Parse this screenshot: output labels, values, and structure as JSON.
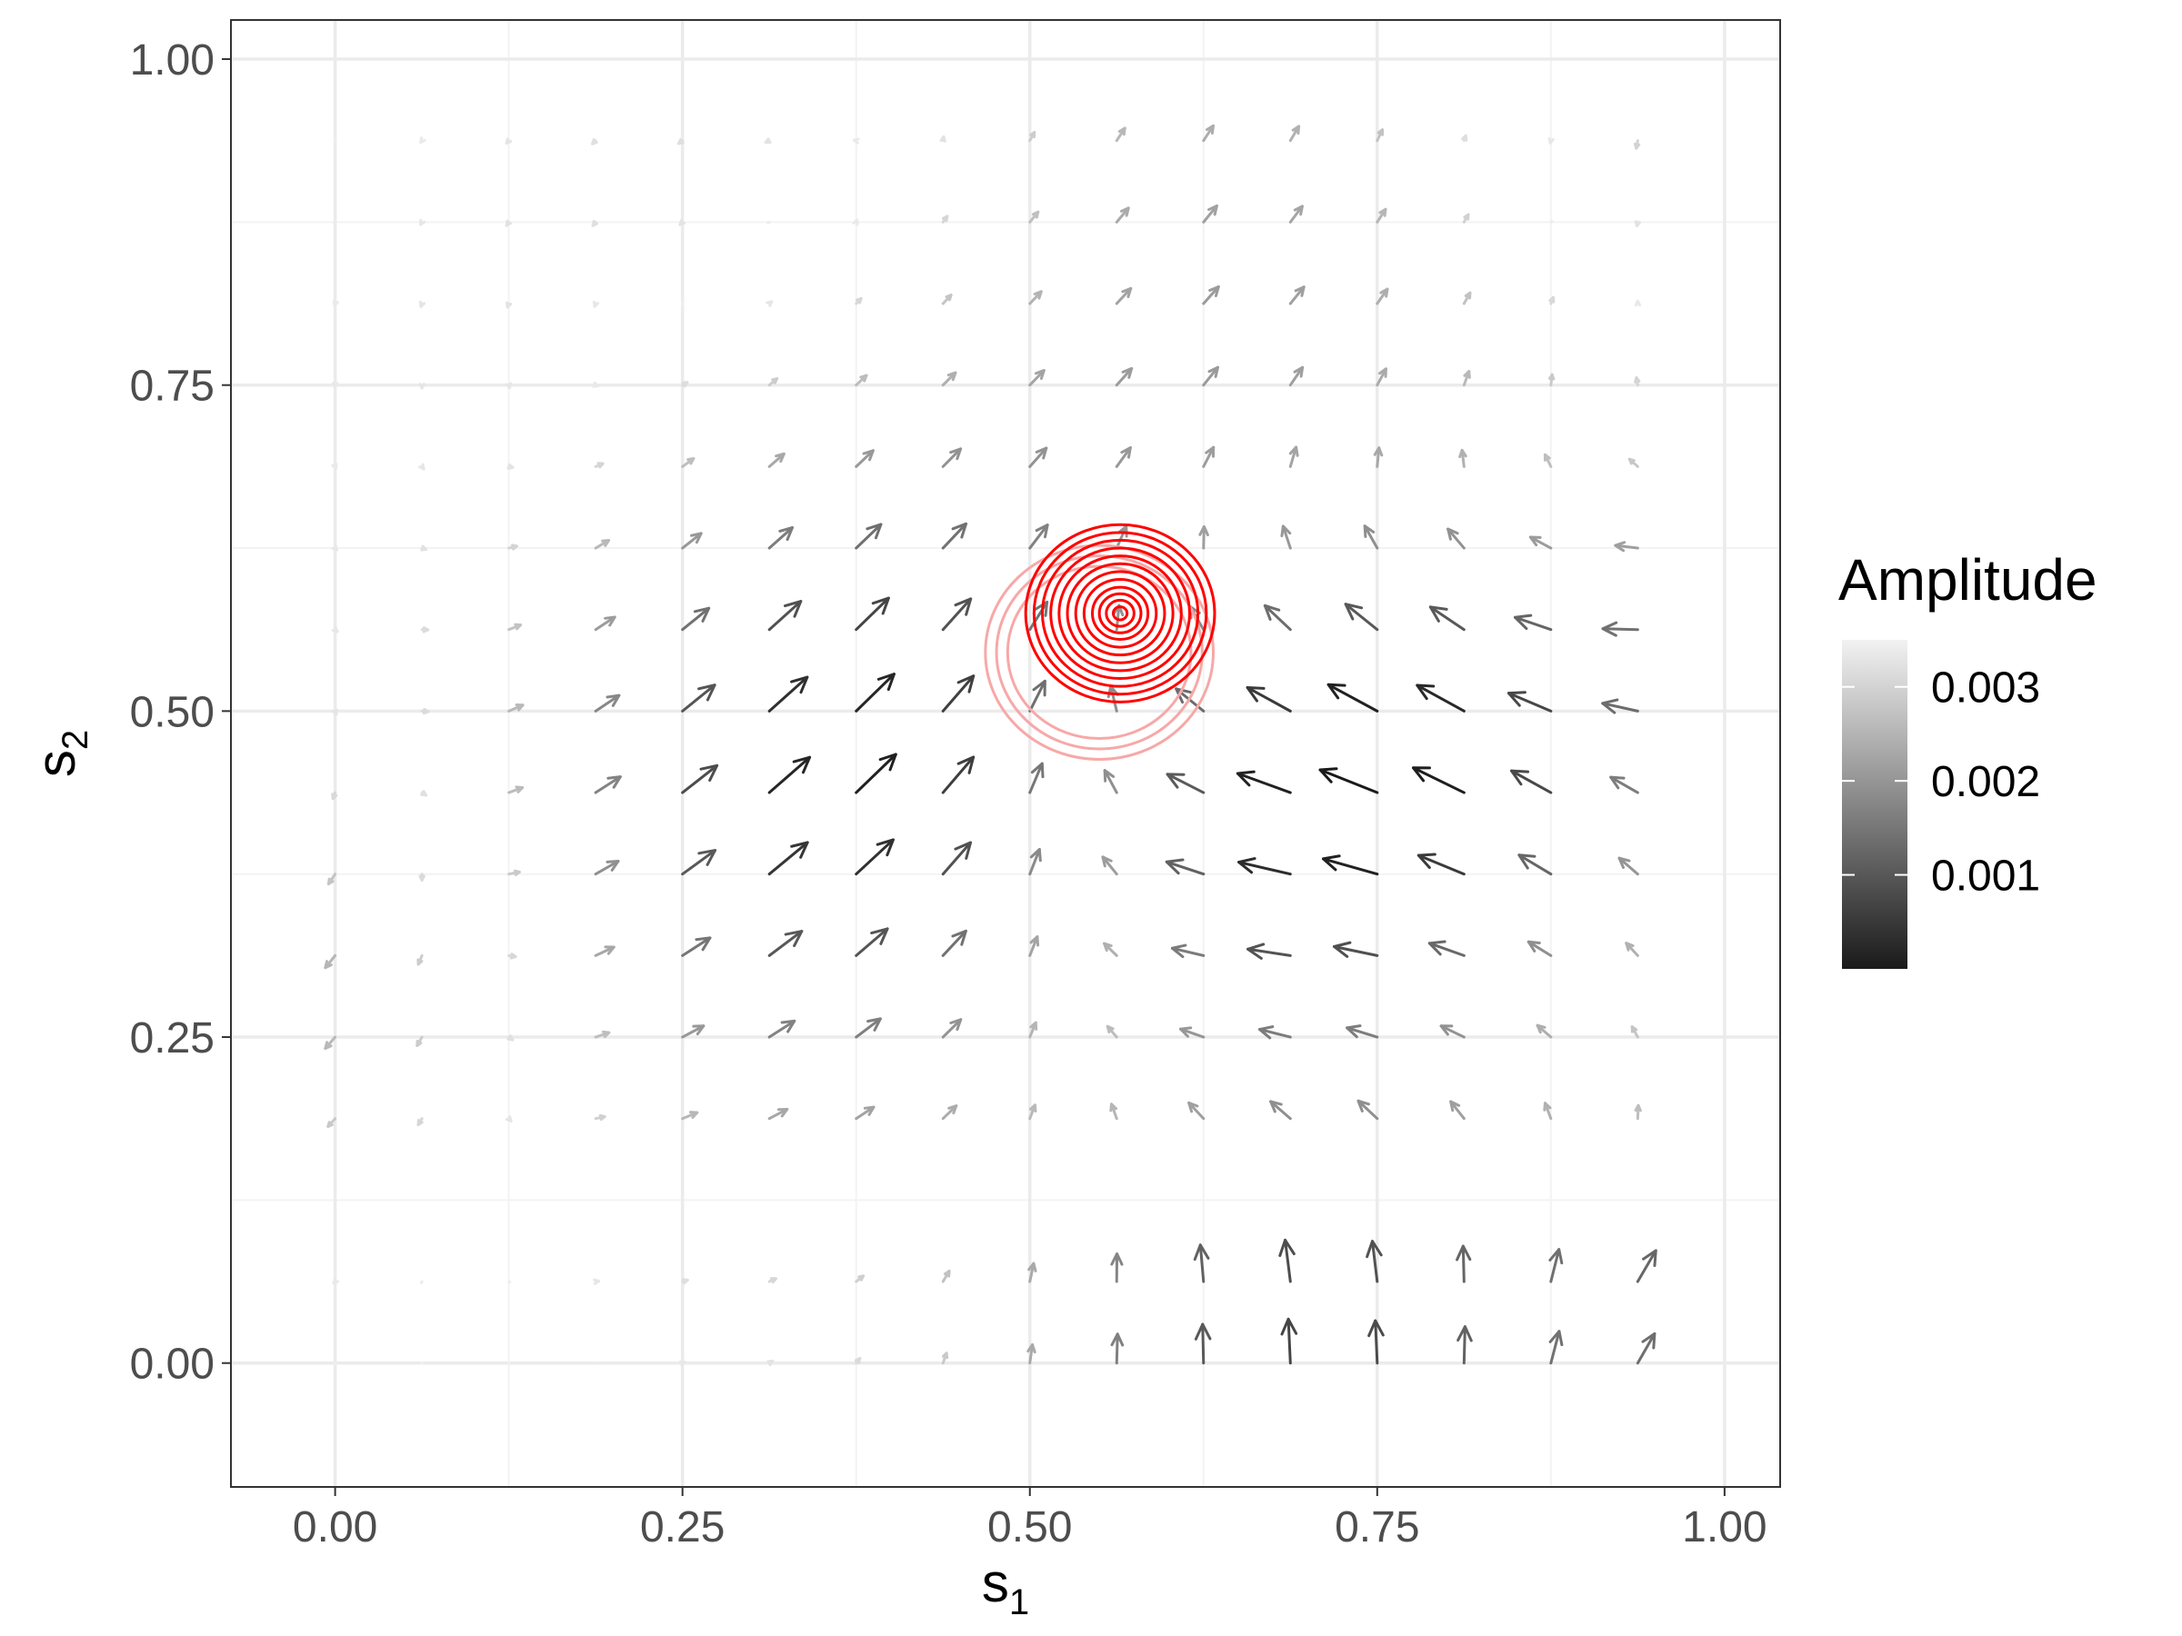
{
  "chart_data": {
    "type": "quiver",
    "xlabel": "s",
    "xlabel_sub": "1",
    "ylabel": "s",
    "ylabel_sub": "2",
    "xlim": [
      -0.075,
      1.04
    ],
    "ylim": [
      -0.095,
      1.03
    ],
    "x_ticks": [
      {
        "value": 0.0,
        "label": "0.00"
      },
      {
        "value": 0.25,
        "label": "0.25"
      },
      {
        "value": 0.5,
        "label": "0.50"
      },
      {
        "value": 0.75,
        "label": "0.75"
      },
      {
        "value": 1.0,
        "label": "1.00"
      }
    ],
    "y_ticks": [
      {
        "value": 0.0,
        "label": "0.00"
      },
      {
        "value": 0.25,
        "label": "0.25"
      },
      {
        "value": 0.5,
        "label": "0.50"
      },
      {
        "value": 0.75,
        "label": "0.75"
      },
      {
        "value": 1.0,
        "label": "1.00"
      }
    ],
    "grid": true,
    "legend": {
      "title": "Amplitude",
      "placement": "right",
      "range": [
        0.0,
        0.0035
      ],
      "breaks": [
        {
          "value": 0.001,
          "label": "0.001"
        },
        {
          "value": 0.002,
          "label": "0.002"
        },
        {
          "value": 0.003,
          "label": "0.003"
        }
      ]
    },
    "vector_field": {
      "grid_x": [
        0.0,
        0.0625,
        0.125,
        0.1875,
        0.25,
        0.3125,
        0.375,
        0.4375,
        0.5,
        0.5625,
        0.625,
        0.6875,
        0.75,
        0.8125,
        0.875,
        0.9375
      ],
      "grid_y": [
        0.0,
        0.0625,
        0.1875,
        0.25,
        0.3125,
        0.375,
        0.4375,
        0.5,
        0.5625,
        0.625,
        0.6875,
        0.75,
        0.8125,
        0.875,
        0.9375
      ],
      "arrow_scale": 12,
      "source": [
        0.565,
        0.575
      ],
      "outer_radius": 0.62,
      "centers": [
        {
          "s1": 0.36,
          "s2": 0.44,
          "direction": "northeast",
          "strength": 0.0035,
          "radius": 0.17
        },
        {
          "s1": 0.68,
          "s2": 0.44,
          "direction": "west",
          "strength": 0.0025,
          "radius": 0.13
        },
        {
          "s1": 0.82,
          "s2": 0.47,
          "direction": "northwest",
          "strength": 0.0022,
          "radius": 0.13
        },
        {
          "s1": 0.69,
          "s2": 0.23,
          "direction": "southwest",
          "strength": 0.0018,
          "radius": 0.14
        },
        {
          "s1": 0.7,
          "s2": 0.04,
          "direction": "north",
          "strength": 0.0032,
          "radius": 0.15
        },
        {
          "s1": 0.97,
          "s2": 0.04,
          "direction": "northeast",
          "strength": 0.0018,
          "radius": 0.08
        },
        {
          "s1": 0.95,
          "s2": 0.56,
          "direction": "southwest",
          "strength": 0.0018,
          "radius": 0.08
        },
        {
          "s1": 0.0,
          "s2": 0.3,
          "direction": "southwest",
          "strength": 0.0012,
          "radius": 0.12
        },
        {
          "s1": 0.67,
          "s2": 0.72,
          "direction": "northeast",
          "strength": 0.0012,
          "radius": 0.18
        },
        {
          "s1": 0.62,
          "s2": 0.95,
          "direction": "northeast",
          "strength": 0.0007,
          "radius": 0.12
        },
        {
          "s1": 0.95,
          "s2": 0.93,
          "direction": "south",
          "strength": 0.0009,
          "radius": 0.1
        }
      ]
    },
    "contours": {
      "center": [
        0.565,
        0.575
      ],
      "radii": [
        0.005,
        0.01,
        0.015,
        0.02,
        0.026,
        0.032,
        0.038,
        0.044,
        0.05,
        0.056,
        0.062,
        0.068
      ],
      "faded_center": [
        0.55,
        0.545
      ],
      "faded_radii": [
        0.066,
        0.074,
        0.082
      ],
      "color": "#ff0000",
      "faded_color": "#f7a8a8"
    },
    "colors": {
      "low": "#f2f2f2",
      "high": "#1a1a1a",
      "grid_major": "#ebebeb",
      "grid_minor": "#f3f3f3",
      "panel_border": "#333333"
    }
  }
}
